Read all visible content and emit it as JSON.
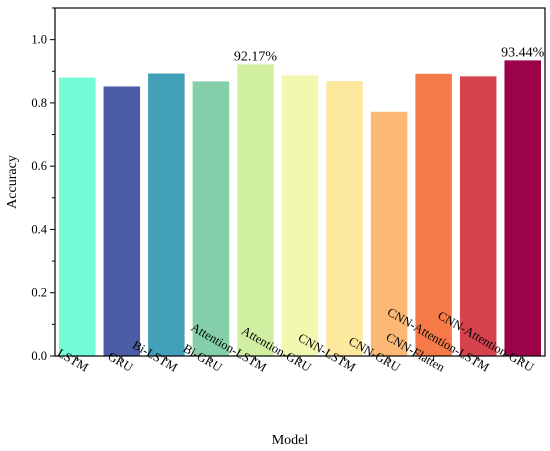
{
  "chart_data": {
    "type": "bar",
    "xlabel": "Model",
    "ylabel": "Accuracy",
    "ylim": [
      0.0,
      1.1
    ],
    "yticks": [
      "0.0",
      "0.2",
      "0.4",
      "0.6",
      "0.8",
      "1.0"
    ],
    "ytick_values": [
      0.0,
      0.2,
      0.4,
      0.6,
      0.8,
      1.0
    ],
    "grid": false,
    "legend": "none",
    "categories": [
      "LSTM",
      "GRU",
      "Bi-LSTM",
      "Bi-GRU",
      "Attention-LSTM",
      "Attention-GRU",
      "CNN-LSTM",
      "CNN-GRU",
      "CNN-Flatten",
      "CNN-Attention-LSTM",
      "CNN-Attention-GRU"
    ],
    "values": [
      0.88,
      0.852,
      0.893,
      0.868,
      0.9217,
      0.887,
      0.869,
      0.772,
      0.892,
      0.884,
      0.9344
    ],
    "colors": [
      "#73fcd6",
      "#4c5ca6",
      "#43a0b9",
      "#84ceaa",
      "#d1efa0",
      "#f3f8b0",
      "#fde99e",
      "#fbb975",
      "#f57a48",
      "#d5434e",
      "#9b0249"
    ],
    "data_labels": [
      null,
      null,
      null,
      null,
      "92.17%",
      null,
      null,
      null,
      null,
      null,
      "93.44%"
    ]
  }
}
